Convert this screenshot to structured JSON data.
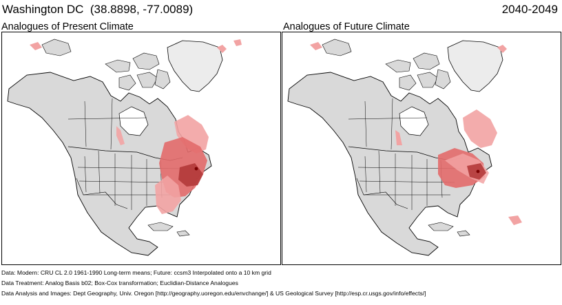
{
  "header": {
    "location": "Washington DC",
    "coords": "(38.8898, -77.0089)",
    "period": "2040-2049"
  },
  "panels": [
    {
      "label": "Analogues of Present Climate"
    },
    {
      "label": "Analogues of Future Climate"
    }
  ],
  "footer": {
    "data": "Data:  Modern: CRU CL 2.0 1961-1990 Long-term means; Future: ccsm3 Interpolated onto a 10 km grid",
    "treatment": "Data Treatment:  Analog Basis b02; Box-Cox transformation; Euclidian-Distance Analogues",
    "analysis": "Data Analysis and Images:  Dept Geography, Univ. Oregon [http://geography.uoregon.edu/envchange/] & US Geological Survey [http://esp.cr.usgs.gov/info/effects/]"
  },
  "colors": {
    "land": "#d9d9d9",
    "analogue_light": "#f2a3a3",
    "analogue_mid": "#e26a6a",
    "analogue_dark": "#b33a3a",
    "target_point": "#7a0000"
  }
}
